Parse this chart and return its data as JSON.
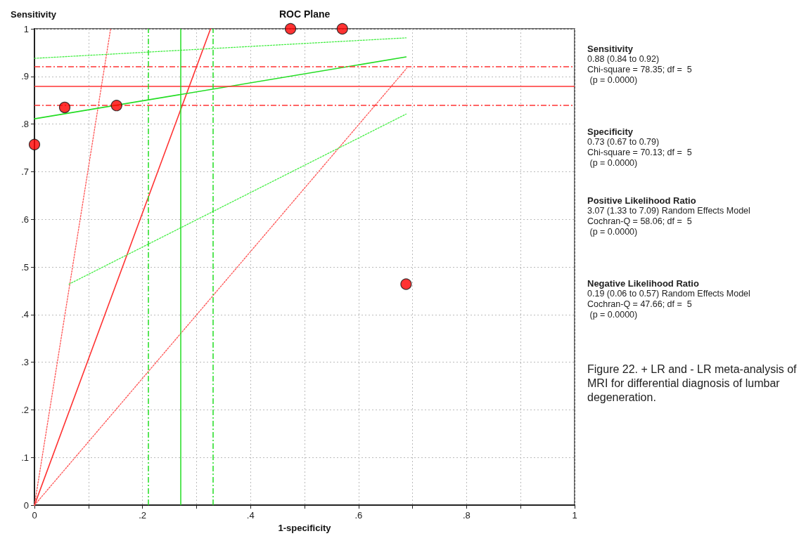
{
  "chart_data": {
    "type": "scatter",
    "title": "ROC Plane",
    "xlabel": "1-specificity",
    "ylabel": "Sensitivity",
    "xlim": [
      0,
      1
    ],
    "ylim": [
      0,
      1
    ],
    "xticks": [
      0,
      {
        "value": 0.1,
        "label": null
      },
      {
        "value": 0.2,
        "label": ".2"
      },
      {
        "value": 0.3,
        "label": null
      },
      {
        "value": 0.4,
        "label": ".4"
      },
      {
        "value": 0.5,
        "label": null
      },
      {
        "value": 0.6,
        "label": ".6"
      },
      {
        "value": 0.7,
        "label": null
      },
      {
        "value": 0.8,
        "label": ".8"
      },
      {
        "value": 0.9,
        "label": null
      },
      1
    ],
    "yticks": [
      0,
      {
        "value": 0.1,
        "label": ".1"
      },
      {
        "value": 0.2,
        "label": ".2"
      },
      {
        "value": 0.3,
        "label": ".3"
      },
      {
        "value": 0.4,
        "label": ".4"
      },
      {
        "value": 0.5,
        "label": ".5"
      },
      {
        "value": 0.6,
        "label": ".6"
      },
      {
        "value": 0.7,
        "label": ".7"
      },
      {
        "value": 0.8,
        "label": ".8"
      },
      {
        "value": 0.9,
        "label": ".9"
      },
      1
    ],
    "grid": true,
    "series": [
      {
        "type": "scatter",
        "color": "#ff0000",
        "marker": "circle",
        "x": [
          0,
          0.056,
          0.152,
          0.474,
          0.57,
          0.688
        ],
        "values": [
          0.757,
          0.835,
          0.839,
          1,
          1,
          0.464
        ]
      },
      {
        "type": "line",
        "color": "#ff3333",
        "marker": "none",
        "line_style": "solid",
        "x": [
          0,
          0.326
        ],
        "values": [
          0,
          1
        ]
      },
      {
        "type": "line",
        "color": "#ff5555",
        "marker": "none",
        "line_style": "dotted",
        "x": [
          0,
          0.141
        ],
        "values": [
          0,
          1
        ]
      },
      {
        "type": "line",
        "color": "#ff5555",
        "marker": "none",
        "line_style": "dotted",
        "x": [
          0,
          0.689
        ],
        "values": [
          0,
          0.917
        ]
      },
      {
        "type": "line",
        "color": "#22dd22",
        "marker": "none",
        "line_style": "solid",
        "x": [
          0,
          0.688
        ],
        "values": [
          0.811,
          0.941
        ]
      },
      {
        "type": "line",
        "color": "#44ee44",
        "marker": "none",
        "line_style": "dotted",
        "x": [
          0,
          0.688
        ],
        "values": [
          0.938,
          0.981
        ]
      },
      {
        "type": "line",
        "color": "#44ee44",
        "marker": "none",
        "line_style": "dotted",
        "x": [
          0.064,
          0.688
        ],
        "values": [
          0.464,
          0.821
        ]
      }
    ],
    "ref_lines": [
      {
        "axis": "y",
        "value": 0.88,
        "color": "#ff3333",
        "line_style": "solid"
      },
      {
        "axis": "y",
        "value": 0.84,
        "color": "#ff3333",
        "line_style": "dashed"
      },
      {
        "axis": "y",
        "value": 0.92,
        "color": "#ff3333",
        "line_style": "dashed"
      },
      {
        "axis": "x",
        "value": 0.27,
        "color": "#22dd22",
        "line_style": "solid"
      },
      {
        "axis": "x",
        "value": 0.21,
        "color": "#22dd22",
        "line_style": "dashed"
      },
      {
        "axis": "x",
        "value": 0.33,
        "color": "#22dd22",
        "line_style": "dashed"
      }
    ],
    "annotations": [
      "Sensitivity\n0.88 (0.84 to 0.92)\nChi-square = 78.35; df =  5\n (p = 0.0000)",
      "Specificity\n0.73 (0.67 to 0.79)\nChi-square = 70.13; df =  5\n (p = 0.0000)",
      "Positive Likelihood Ratio\n3.07 (1.33 to 7.09) Random Effects Model\nCochran-Q = 58.06; df =  5\n (p = 0.0000)",
      "Negative Likelihood Ratio\n0.19 (0.06 to 0.57) Random Effects Model\nCochran-Q = 47.66; df =  5\n (p = 0.0000)",
      "Figure 22. + LR and - LR meta-analysis of MRI for differential diagnosis of lumbar degeneration."
    ]
  }
}
